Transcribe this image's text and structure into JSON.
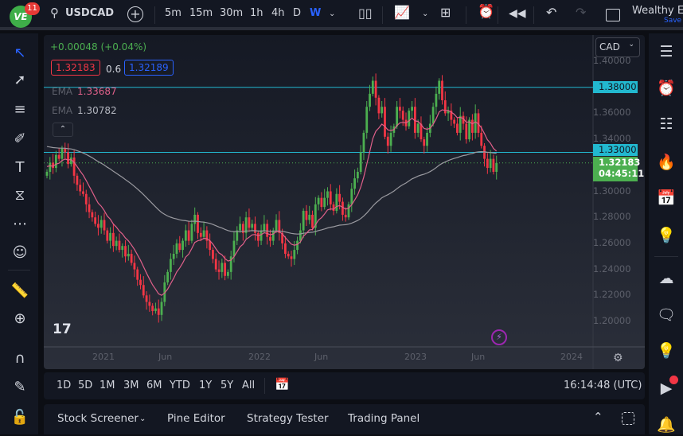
{
  "topbar": {
    "notif_count": "11",
    "symbol": "USDCAD",
    "intervals": [
      "5m",
      "15m",
      "30m",
      "1h",
      "4h",
      "D",
      "W"
    ],
    "active_interval": "W",
    "layout_name": "Wealthy Ed",
    "save_label": "Save"
  },
  "legend": {
    "change": "+0.00048 (+0.04%)",
    "bid": "1.32183",
    "spread": "0.6",
    "ask": "1.32189",
    "ema1_label": "EMA",
    "ema1_value": "1.33687",
    "ema2_label": "EMA",
    "ema2_value": "1.30782"
  },
  "currency": "CAD",
  "colors": {
    "up": "#4caf50",
    "down": "#f23645",
    "ema_fast": "#e0608a",
    "ema_slow": "#9a9aa0",
    "hline": "#22b8cf",
    "accent": "#2962ff"
  },
  "chart_data": {
    "type": "candlestick",
    "symbol": "USDCAD",
    "interval": "W",
    "closes": [
      1.315,
      1.322,
      1.318,
      1.328,
      1.325,
      1.333,
      1.33,
      1.321,
      1.326,
      1.312,
      1.305,
      1.3,
      1.298,
      1.29,
      1.284,
      1.28,
      1.275,
      1.272,
      1.278,
      1.27,
      1.262,
      1.268,
      1.258,
      1.262,
      1.255,
      1.258,
      1.25,
      1.252,
      1.245,
      1.24,
      1.232,
      1.228,
      1.22,
      1.215,
      1.212,
      1.208,
      1.21,
      1.205,
      1.215,
      1.23,
      1.238,
      1.248,
      1.252,
      1.26,
      1.255,
      1.262,
      1.27,
      1.262,
      1.275,
      1.282,
      1.268,
      1.265,
      1.27,
      1.262,
      1.255,
      1.248,
      1.24,
      1.238,
      1.245,
      1.235,
      1.238,
      1.25,
      1.262,
      1.27,
      1.275,
      1.268,
      1.28,
      1.272,
      1.275,
      1.268,
      1.262,
      1.27,
      1.275,
      1.265,
      1.262,
      1.27,
      1.278,
      1.268,
      1.26,
      1.252,
      1.25,
      1.248,
      1.255,
      1.262,
      1.27,
      1.285,
      1.278,
      1.282,
      1.272,
      1.29,
      1.295,
      1.288,
      1.295,
      1.3,
      1.29,
      1.285,
      1.298,
      1.292,
      1.282,
      1.28,
      1.29,
      1.302,
      1.31,
      1.315,
      1.33,
      1.345,
      1.365,
      1.375,
      1.385,
      1.372,
      1.36,
      1.365,
      1.342,
      1.335,
      1.345,
      1.35,
      1.365,
      1.362,
      1.355,
      1.35,
      1.362,
      1.365,
      1.345,
      1.352,
      1.34,
      1.335,
      1.345,
      1.352,
      1.365,
      1.375,
      1.385,
      1.37,
      1.36,
      1.362,
      1.355,
      1.352,
      1.345,
      1.358,
      1.352,
      1.34,
      1.355,
      1.345,
      1.36,
      1.345,
      1.335,
      1.325,
      1.318,
      1.325,
      1.315,
      1.32183
    ],
    "ylim": [
      1.18,
      1.41
    ],
    "y_ticks": [
      "1.40000",
      "1.36000",
      "1.34000",
      "1.30000",
      "1.28000",
      "1.26000",
      "1.24000",
      "1.22000",
      "1.20000"
    ],
    "x_ticks": [
      "2021",
      "Jun",
      "2022",
      "Jun",
      "2023",
      "Jun",
      "2024"
    ],
    "horizontal_lines": [
      {
        "price": 1.38,
        "label": "1.38000"
      },
      {
        "price": 1.33,
        "label": "1.33000"
      }
    ],
    "last_price": {
      "price": 1.32183,
      "label": "1.32183",
      "countdown": "04:45:11"
    }
  },
  "range_bar": {
    "ranges": [
      "1D",
      "5D",
      "1M",
      "3M",
      "6M",
      "YTD",
      "1Y",
      "5Y",
      "All"
    ],
    "clock": "16:14:48 (UTC)"
  },
  "bottom_panel": {
    "tabs": [
      "Stock Screener",
      "Pine Editor",
      "Strategy Tester",
      "Trading Panel"
    ]
  }
}
